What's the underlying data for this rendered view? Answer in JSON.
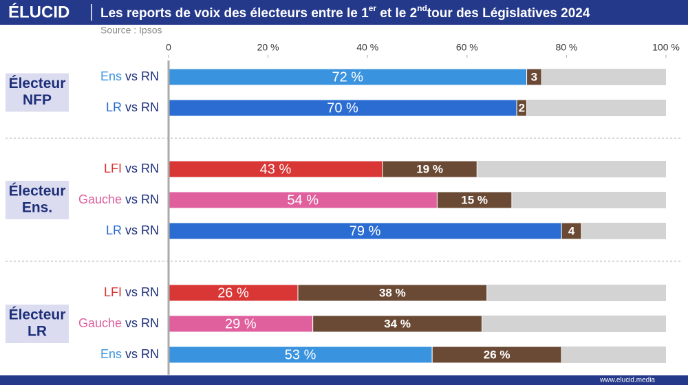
{
  "chart_data": {
    "type": "bar",
    "orientation": "horizontal",
    "brand": "ÉLUCID",
    "title_parts": [
      "Les reports de voix des électeurs entre le 1",
      "er",
      " et le 2",
      "nd",
      "tour des Législatives 2024"
    ],
    "source": "Source : Ipsos",
    "footer": "www.elucid.media",
    "xlim": [
      0,
      100
    ],
    "xticks": [
      0,
      {
        "value": 20,
        "label": "20 %"
      },
      {
        "value": 40,
        "label": "40 %"
      },
      {
        "value": 60,
        "label": "60 %"
      },
      {
        "value": 80,
        "label": "80 %"
      },
      {
        "value": 100,
        "label": "100 %"
      }
    ],
    "rn_color": "#6a4a35",
    "rest_color": "#d3d3d3",
    "groups": [
      {
        "label_lines": [
          "Électeur",
          "NFP"
        ],
        "rows": [
          {
            "candidate": "Ens",
            "versus": "vs RN",
            "color": "#3a93de",
            "values": [
              72,
              3
            ],
            "value_labels": [
              "72 %",
              "3"
            ]
          },
          {
            "candidate": "LR",
            "versus": "vs RN",
            "color": "#2a6cd2",
            "values": [
              70,
              2
            ],
            "value_labels": [
              "70 %",
              "2"
            ]
          }
        ]
      },
      {
        "label_lines": [
          "Électeur",
          "Ens."
        ],
        "rows": [
          {
            "candidate": "LFI",
            "versus": "vs RN",
            "color": "#d93636",
            "values": [
              43,
              19
            ],
            "value_labels": [
              "43 %",
              "19 %"
            ]
          },
          {
            "candidate": "Gauche",
            "versus": "vs RN",
            "color": "#e0609e",
            "values": [
              54,
              15
            ],
            "value_labels": [
              "54 %",
              "15 %"
            ]
          },
          {
            "candidate": "LR",
            "versus": "vs RN",
            "color": "#2a6cd2",
            "values": [
              79,
              4
            ],
            "value_labels": [
              "79 %",
              "4"
            ]
          }
        ]
      },
      {
        "label_lines": [
          "Électeur",
          "LR"
        ],
        "rows": [
          {
            "candidate": "LFI",
            "versus": "vs RN",
            "color": "#d93636",
            "values": [
              26,
              38
            ],
            "value_labels": [
              "26 %",
              "38 %"
            ]
          },
          {
            "candidate": "Gauche",
            "versus": "vs RN",
            "color": "#e0609e",
            "values": [
              29,
              34
            ],
            "value_labels": [
              "29 %",
              "34 %"
            ]
          },
          {
            "candidate": "Ens",
            "versus": "vs RN",
            "color": "#3a93de",
            "values": [
              53,
              26
            ],
            "value_labels": [
              "53 %",
              "26 %"
            ]
          }
        ]
      }
    ]
  }
}
